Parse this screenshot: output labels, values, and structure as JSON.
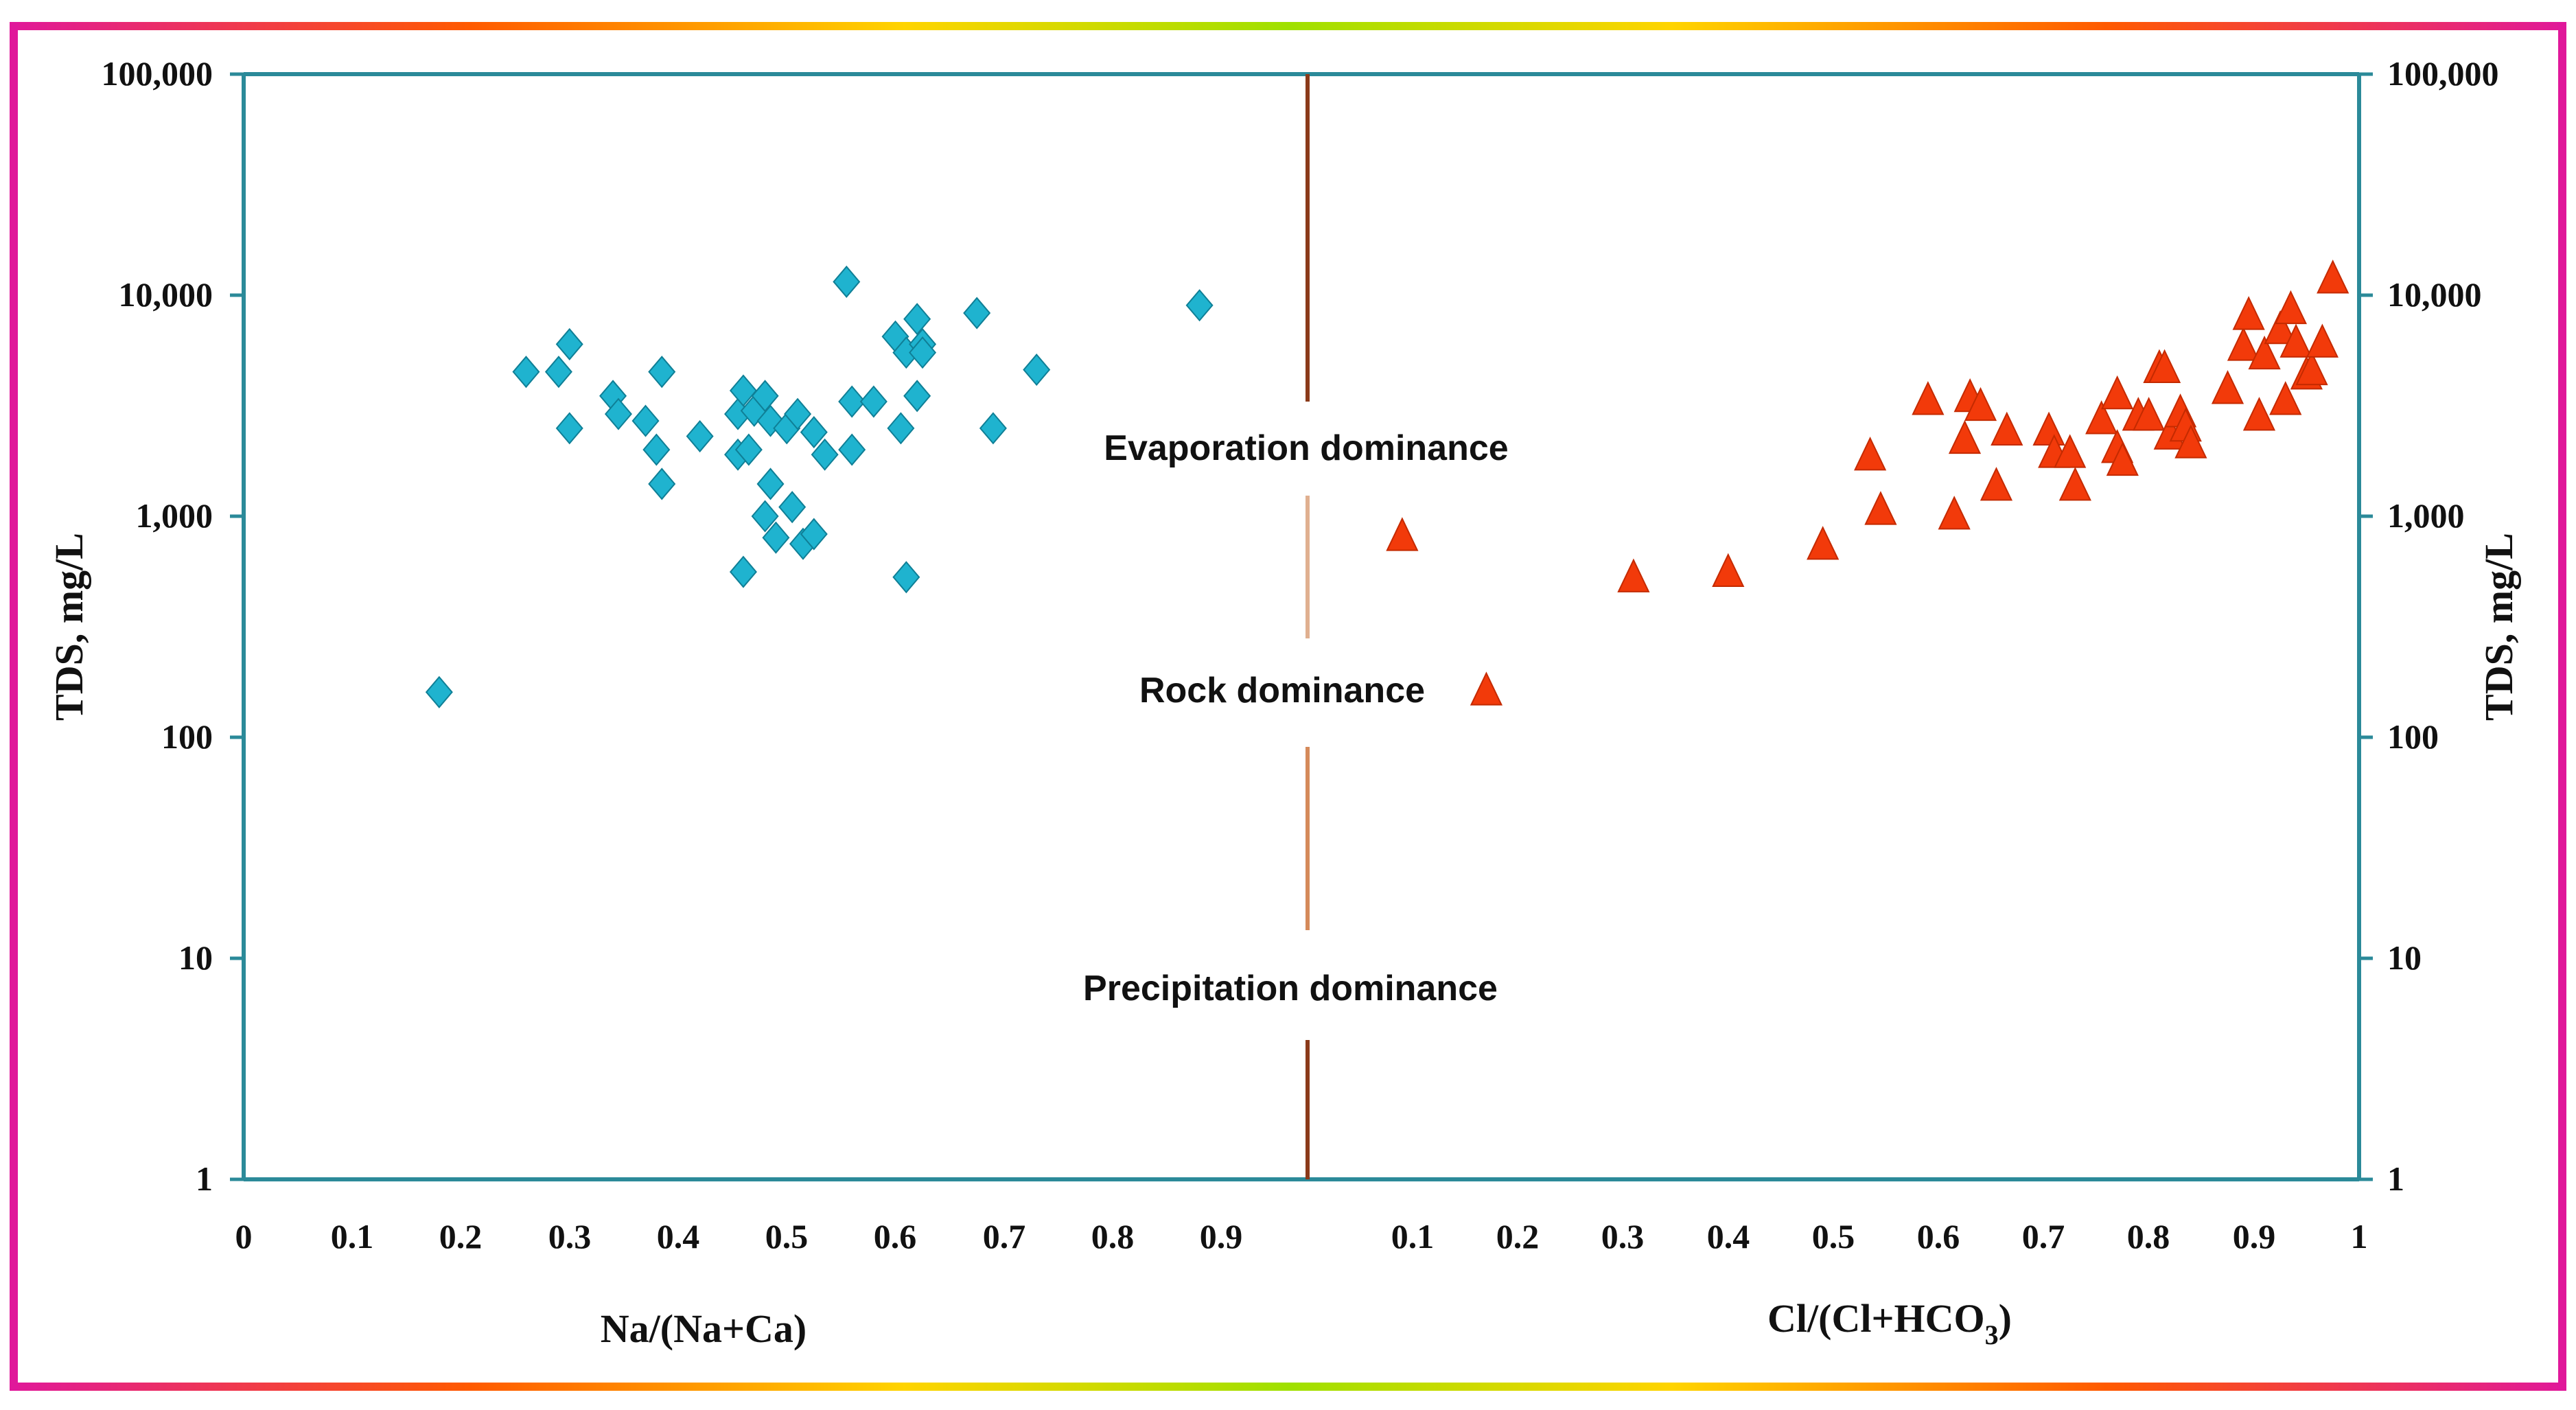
{
  "chart_data": {
    "type": "scatter",
    "y_scale": "log",
    "ylim": [
      1,
      100000
    ],
    "ylabel": "TDS, mg/L",
    "y_ticks": [
      "1",
      "10",
      "100",
      "1,000",
      "10,000",
      "100,000"
    ],
    "y_tick_values": [
      1,
      10,
      100,
      1000,
      10000,
      100000
    ],
    "x_tick_labels_left": [
      "0",
      "0.1",
      "0.2",
      "0.3",
      "0.4",
      "0.5",
      "0.6",
      "0.7",
      "0.8",
      "0.9"
    ],
    "x_tick_labels_right": [
      "0.1",
      "0.2",
      "0.3",
      "0.4",
      "0.5",
      "0.6",
      "0.7",
      "0.8",
      "0.9",
      "1"
    ],
    "xlabel_left": "Na/(Na+Ca)",
    "xlabel_right": "Cl/(Cl+HCO3)",
    "xlim_left": [
      0,
      1
    ],
    "xlim_right": [
      0,
      1
    ],
    "annotations": [
      "Evaporation dominance",
      "Rock dominance",
      "Precipitation dominance"
    ],
    "colors": {
      "left_series": "#1fb3cf",
      "right_series": "#f23a0a",
      "axes": "#2b8a99",
      "divider": "#8b3a1a",
      "frame_accent": "#e0189a"
    },
    "series": [
      {
        "marker": "diamond",
        "values": [
          [
            0.18,
            160
          ],
          [
            0.26,
            4500
          ],
          [
            0.29,
            4500
          ],
          [
            0.3,
            6000
          ],
          [
            0.3,
            2500
          ],
          [
            0.34,
            3500
          ],
          [
            0.345,
            2900
          ],
          [
            0.37,
            2700
          ],
          [
            0.38,
            2000
          ],
          [
            0.385,
            4500
          ],
          [
            0.385,
            1400
          ],
          [
            0.42,
            2300
          ],
          [
            0.455,
            2900
          ],
          [
            0.455,
            1900
          ],
          [
            0.46,
            560
          ],
          [
            0.46,
            3700
          ],
          [
            0.465,
            2000
          ],
          [
            0.47,
            3000
          ],
          [
            0.48,
            3500
          ],
          [
            0.485,
            2700
          ],
          [
            0.48,
            1000
          ],
          [
            0.485,
            1400
          ],
          [
            0.49,
            800
          ],
          [
            0.5,
            2500
          ],
          [
            0.505,
            1100
          ],
          [
            0.51,
            2900
          ],
          [
            0.515,
            750
          ],
          [
            0.525,
            830
          ],
          [
            0.525,
            2400
          ],
          [
            0.535,
            1900
          ],
          [
            0.555,
            11500
          ],
          [
            0.56,
            3300
          ],
          [
            0.56,
            2000
          ],
          [
            0.58,
            3300
          ],
          [
            0.6,
            6500
          ],
          [
            0.605,
            2500
          ],
          [
            0.61,
            530
          ],
          [
            0.61,
            5500
          ],
          [
            0.62,
            3500
          ],
          [
            0.62,
            7800
          ],
          [
            0.625,
            6000
          ],
          [
            0.625,
            5500
          ],
          [
            0.675,
            8300
          ],
          [
            0.69,
            2500
          ],
          [
            0.73,
            4600
          ],
          [
            0.88,
            9000
          ]
        ]
      },
      {
        "marker": "triangle",
        "values": [
          [
            0.09,
            800
          ],
          [
            0.17,
            160
          ],
          [
            0.31,
            520
          ],
          [
            0.4,
            550
          ],
          [
            0.49,
            730
          ],
          [
            0.535,
            1850
          ],
          [
            0.545,
            1050
          ],
          [
            0.59,
            3300
          ],
          [
            0.615,
            1000
          ],
          [
            0.625,
            2200
          ],
          [
            0.63,
            3400
          ],
          [
            0.64,
            3100
          ],
          [
            0.655,
            1350
          ],
          [
            0.665,
            2400
          ],
          [
            0.705,
            2400
          ],
          [
            0.71,
            1900
          ],
          [
            0.725,
            1900
          ],
          [
            0.73,
            1350
          ],
          [
            0.755,
            2700
          ],
          [
            0.77,
            3500
          ],
          [
            0.77,
            2000
          ],
          [
            0.775,
            1750
          ],
          [
            0.79,
            2800
          ],
          [
            0.8,
            2800
          ],
          [
            0.81,
            4600
          ],
          [
            0.815,
            4600
          ],
          [
            0.82,
            2300
          ],
          [
            0.83,
            2900
          ],
          [
            0.835,
            2500
          ],
          [
            0.84,
            2100
          ],
          [
            0.875,
            3700
          ],
          [
            0.89,
            5800
          ],
          [
            0.895,
            8000
          ],
          [
            0.905,
            2800
          ],
          [
            0.91,
            5300
          ],
          [
            0.925,
            6900
          ],
          [
            0.93,
            3300
          ],
          [
            0.935,
            8500
          ],
          [
            0.94,
            6000
          ],
          [
            0.95,
            4300
          ],
          [
            0.955,
            4500
          ],
          [
            0.965,
            6000
          ],
          [
            0.975,
            11700
          ]
        ]
      }
    ]
  }
}
